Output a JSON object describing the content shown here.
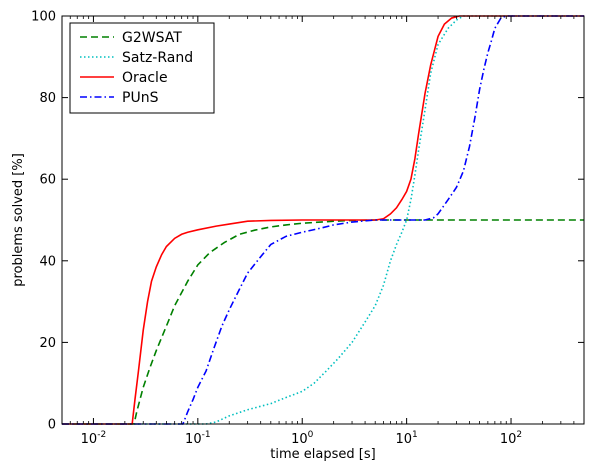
{
  "chart_data": {
    "type": "line",
    "title": "",
    "xlabel": "time elapsed [s]",
    "ylabel": "problems solved [%]",
    "x_scale": "log",
    "xlim": [
      0.005,
      500
    ],
    "ylim": [
      0,
      100
    ],
    "x_ticks": [
      {
        "value": 0.01,
        "base": "10",
        "exp": "-2"
      },
      {
        "value": 0.1,
        "base": "10",
        "exp": "-1"
      },
      {
        "value": 1,
        "base": "10",
        "exp": "0"
      },
      {
        "value": 10,
        "base": "10",
        "exp": "1"
      },
      {
        "value": 100,
        "base": "10",
        "exp": "2"
      }
    ],
    "y_ticks": [
      0,
      20,
      40,
      60,
      80,
      100
    ],
    "grid": false,
    "legend_position": "top-left",
    "series": [
      {
        "name": "G2WSAT",
        "color": "#008000",
        "dash": "dashed",
        "points": [
          [
            0.005,
            0
          ],
          [
            0.0245,
            0
          ],
          [
            0.026,
            3
          ],
          [
            0.03,
            9
          ],
          [
            0.035,
            14
          ],
          [
            0.04,
            18
          ],
          [
            0.05,
            24
          ],
          [
            0.06,
            29
          ],
          [
            0.08,
            35
          ],
          [
            0.1,
            39
          ],
          [
            0.13,
            42
          ],
          [
            0.18,
            44.5
          ],
          [
            0.25,
            46.5
          ],
          [
            0.35,
            47.5
          ],
          [
            0.5,
            48.3
          ],
          [
            0.7,
            48.8
          ],
          [
            1,
            49.2
          ],
          [
            1.5,
            49.5
          ],
          [
            2,
            49.7
          ],
          [
            3,
            49.9
          ],
          [
            5,
            50
          ],
          [
            10,
            50
          ],
          [
            50,
            50
          ],
          [
            500,
            50
          ]
        ]
      },
      {
        "name": "Satz-Rand",
        "color": "#00BFBF",
        "dash": "dotted",
        "points": [
          [
            0.005,
            0
          ],
          [
            0.12,
            0
          ],
          [
            0.15,
            0.5
          ],
          [
            0.2,
            2
          ],
          [
            0.3,
            3.5
          ],
          [
            0.5,
            5
          ],
          [
            0.7,
            6.5
          ],
          [
            1,
            8
          ],
          [
            1.3,
            10
          ],
          [
            1.7,
            13
          ],
          [
            2.2,
            16
          ],
          [
            3,
            20
          ],
          [
            4,
            25
          ],
          [
            5,
            29
          ],
          [
            6,
            34
          ],
          [
            7,
            40
          ],
          [
            8,
            44
          ],
          [
            9,
            47
          ],
          [
            10,
            50
          ],
          [
            11,
            55
          ],
          [
            12,
            61
          ],
          [
            13,
            67
          ],
          [
            15,
            77
          ],
          [
            17,
            86
          ],
          [
            20,
            93
          ],
          [
            25,
            97
          ],
          [
            30,
            99
          ],
          [
            35,
            100
          ],
          [
            500,
            100
          ]
        ]
      },
      {
        "name": "Oracle",
        "color": "#FF0000",
        "dash": "solid",
        "points": [
          [
            0.005,
            0
          ],
          [
            0.0235,
            0
          ],
          [
            0.025,
            6
          ],
          [
            0.027,
            13
          ],
          [
            0.03,
            23
          ],
          [
            0.033,
            30
          ],
          [
            0.036,
            35
          ],
          [
            0.04,
            38.5
          ],
          [
            0.045,
            41.5
          ],
          [
            0.05,
            43.5
          ],
          [
            0.06,
            45.5
          ],
          [
            0.07,
            46.5
          ],
          [
            0.08,
            47
          ],
          [
            0.1,
            47.6
          ],
          [
            0.15,
            48.5
          ],
          [
            0.2,
            49
          ],
          [
            0.3,
            49.7
          ],
          [
            0.5,
            49.9
          ],
          [
            1,
            50
          ],
          [
            3,
            50
          ],
          [
            5,
            50
          ],
          [
            6,
            50.3
          ],
          [
            7,
            51.5
          ],
          [
            8,
            53
          ],
          [
            9,
            55
          ],
          [
            10,
            57
          ],
          [
            11,
            60
          ],
          [
            12,
            65
          ],
          [
            13,
            71
          ],
          [
            15,
            81
          ],
          [
            17,
            88
          ],
          [
            20,
            95
          ],
          [
            23,
            98
          ],
          [
            27,
            99.5
          ],
          [
            32,
            100
          ],
          [
            500,
            100
          ]
        ]
      },
      {
        "name": "PUnS",
        "color": "#0000FF",
        "dash": "dashdot",
        "points": [
          [
            0.005,
            0
          ],
          [
            0.072,
            0
          ],
          [
            0.08,
            3
          ],
          [
            0.09,
            6
          ],
          [
            0.1,
            9
          ],
          [
            0.12,
            13
          ],
          [
            0.14,
            18
          ],
          [
            0.17,
            24
          ],
          [
            0.2,
            28
          ],
          [
            0.25,
            33
          ],
          [
            0.3,
            37
          ],
          [
            0.4,
            41
          ],
          [
            0.5,
            44
          ],
          [
            0.7,
            46
          ],
          [
            1,
            47
          ],
          [
            1.5,
            48
          ],
          [
            2,
            48.8
          ],
          [
            3,
            49.5
          ],
          [
            5,
            50
          ],
          [
            10,
            50
          ],
          [
            15,
            50
          ],
          [
            18,
            50.5
          ],
          [
            20,
            51.5
          ],
          [
            22,
            53
          ],
          [
            25,
            55
          ],
          [
            30,
            58
          ],
          [
            35,
            62
          ],
          [
            40,
            68
          ],
          [
            45,
            75
          ],
          [
            50,
            82
          ],
          [
            55,
            87
          ],
          [
            60,
            91
          ],
          [
            65,
            94
          ],
          [
            70,
            97
          ],
          [
            80,
            99.5
          ],
          [
            90,
            100
          ],
          [
            500,
            100
          ]
        ]
      }
    ]
  }
}
